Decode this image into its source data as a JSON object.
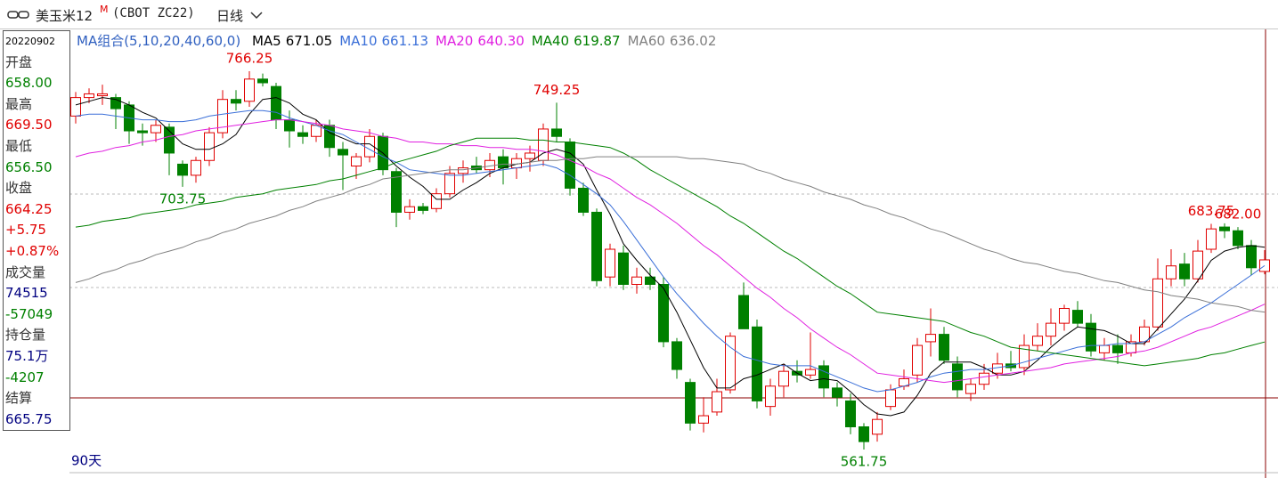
{
  "header": {
    "symbol": "美玉米12",
    "flag": "M",
    "code": "(CBOT ZC22)",
    "period": "日线"
  },
  "info": {
    "date": "20220902",
    "items": [
      {
        "text": "开盘",
        "color": "#333"
      },
      {
        "text": "658.00",
        "color": "#008000"
      },
      {
        "text": "最高",
        "color": "#333"
      },
      {
        "text": "669.50",
        "color": "#e00000"
      },
      {
        "text": "最低",
        "color": "#333"
      },
      {
        "text": "656.50",
        "color": "#008000"
      },
      {
        "text": "收盘",
        "color": "#333"
      },
      {
        "text": "664.25",
        "color": "#e00000"
      },
      {
        "text": "+5.75",
        "color": "#e00000"
      },
      {
        "text": "+0.87%",
        "color": "#e00000"
      },
      {
        "text": "成交量",
        "color": "#333"
      },
      {
        "text": "74515",
        "color": "#000080"
      },
      {
        "text": "-57049",
        "color": "#008000"
      },
      {
        "text": "持仓量",
        "color": "#333"
      },
      {
        "text": "75.1万",
        "color": "#000080"
      },
      {
        "text": "-4207",
        "color": "#008000"
      },
      {
        "text": "结算",
        "color": "#333"
      },
      {
        "text": "665.75",
        "color": "#000080"
      }
    ]
  },
  "chart_data": {
    "type": "candlestick",
    "indicator": "MA组合(5,10,20,40,60,0)",
    "indicator_color": "#3060c0",
    "period_label": "90天",
    "up_color": "#e00000",
    "down_color": "#008000",
    "ylim": [
      549.7,
      789.35
    ],
    "open": [
      742,
      752,
      753,
      752,
      748,
      734,
      733,
      736,
      716,
      710,
      718,
      733,
      751,
      750,
      762,
      758,
      740,
      733,
      731,
      737,
      724,
      715,
      720,
      731,
      712,
      690,
      693,
      692,
      700,
      711,
      715,
      713,
      720,
      714,
      719,
      718,
      735,
      728,
      703,
      690,
      655,
      668,
      651,
      655,
      651,
      620,
      598,
      576,
      582,
      594,
      645,
      628,
      585,
      596,
      604,
      602,
      607,
      595,
      588,
      574,
      570,
      585,
      596,
      602,
      620,
      624,
      608,
      592,
      597,
      603,
      608,
      606,
      618,
      623,
      630,
      637,
      630,
      614,
      618,
      614,
      620,
      628,
      654,
      662,
      654,
      670,
      682,
      680,
      672,
      658
    ],
    "high": [
      755,
      757,
      759,
      754,
      750,
      738,
      740,
      738,
      718,
      720,
      736,
      756,
      756,
      766.25,
      765,
      760,
      745,
      737,
      740,
      740,
      728,
      722,
      735,
      733,
      714,
      697,
      695,
      703,
      715,
      718,
      720,
      722,
      724,
      722,
      726,
      738,
      749.25,
      730,
      706,
      692,
      673,
      672,
      660,
      660,
      655,
      622,
      600,
      590,
      600,
      625,
      652,
      632,
      600,
      608,
      610,
      625,
      610,
      598,
      592,
      576,
      582,
      597,
      605,
      622,
      638,
      628,
      612,
      600,
      608,
      614,
      615,
      624,
      630,
      638,
      640,
      642,
      635,
      622,
      624,
      624,
      632,
      665,
      670,
      668,
      675,
      683.75,
      684,
      682,
      675,
      669.5
    ],
    "low": [
      738,
      749,
      748,
      735,
      727,
      726,
      728,
      710,
      703.75,
      706,
      715,
      730,
      745,
      747,
      758,
      735,
      725,
      727,
      728,
      720,
      702,
      708,
      717,
      710,
      682,
      686,
      689,
      690,
      698,
      706,
      711,
      709,
      705,
      708,
      712,
      715,
      728,
      699,
      688,
      650,
      650,
      648,
      646,
      648,
      617,
      600,
      572,
      571,
      580,
      592,
      628,
      584,
      580,
      590,
      598,
      600,
      590,
      585,
      570,
      561.75,
      566,
      583,
      594,
      598,
      612,
      608,
      590,
      588,
      594,
      600,
      604,
      602,
      615,
      618,
      626,
      628,
      612,
      610,
      608,
      612,
      618,
      626,
      650,
      650,
      652,
      668,
      676,
      670,
      656,
      656.5
    ],
    "close": [
      752,
      754,
      754,
      746,
      734,
      733,
      737,
      722,
      710,
      718,
      733,
      751,
      749,
      762,
      760,
      740,
      734,
      731,
      737,
      725,
      721,
      720,
      731,
      713,
      690,
      693,
      691,
      700,
      711,
      714,
      713,
      718,
      714,
      719,
      722,
      735,
      731,
      703,
      690,
      653,
      670,
      651,
      655,
      651,
      620,
      605,
      576,
      580,
      593,
      623,
      627,
      588,
      596,
      604,
      602,
      605,
      595,
      590,
      574,
      566,
      578,
      594,
      600,
      618,
      624,
      610,
      594,
      597,
      603,
      608,
      606,
      618,
      623,
      630,
      638,
      630,
      615,
      618,
      614,
      620,
      628,
      654,
      661,
      654,
      669,
      681,
      680,
      672,
      660,
      664.25
    ],
    "series": [
      {
        "name": "MA5",
        "legend_value": "671.05",
        "color": "#000000",
        "values": [
          748,
          750,
          752,
          751,
          748,
          744,
          741,
          734,
          727,
          724,
          724,
          727,
          732,
          743,
          751,
          752,
          749,
          743,
          740,
          733,
          730,
          727,
          727,
          722,
          715,
          709,
          704,
          697,
          697,
          702,
          706,
          711,
          714,
          716,
          717,
          722,
          724,
          722,
          716,
          702,
          689,
          673,
          664,
          656,
          649,
          636,
          621,
          606,
          595,
          595,
          600,
          602,
          605,
          608,
          603,
          599,
          600,
          599,
          593,
          586,
          581,
          580,
          582,
          591,
          603,
          609,
          609,
          609,
          606,
          602,
          602,
          604,
          610,
          617,
          623,
          628,
          627,
          626,
          623,
          619,
          619,
          627,
          635,
          643,
          653,
          664,
          669,
          671,
          672,
          671.05
        ]
      },
      {
        "name": "MA10",
        "legend_value": "661.13",
        "color": "#3a6fd8",
        "values": [
          742,
          743,
          743,
          742,
          741,
          740,
          740,
          739,
          739,
          740,
          742,
          743,
          744,
          745,
          745,
          744,
          741,
          739,
          737,
          734,
          732,
          728,
          724,
          720,
          717,
          713,
          712,
          711,
          710,
          710,
          711,
          712,
          713,
          714,
          715,
          716,
          714,
          710,
          705,
          700,
          694,
          685,
          675,
          665,
          655,
          646,
          638,
          630,
          623,
          617,
          612,
          610,
          608,
          607,
          607,
          607,
          604,
          601,
          598,
          595,
          593,
          594,
          596,
          598,
          601,
          603,
          604,
          605,
          605,
          606,
          607,
          609,
          611,
          613,
          615,
          617,
          618,
          618,
          619,
          619,
          620,
          624,
          628,
          633,
          637,
          641,
          646,
          651,
          656,
          661.13
        ]
      },
      {
        "name": "MA20",
        "legend_value": "640.30",
        "color": "#e020e0",
        "values": [
          720,
          722,
          723,
          725,
          726,
          728,
          729,
          731,
          732,
          734,
          735,
          736,
          737,
          738,
          739,
          740,
          740,
          739,
          738,
          737,
          735,
          734,
          733,
          731,
          730,
          728,
          728,
          727,
          727,
          726,
          726,
          725,
          725,
          724,
          724,
          723,
          721,
          718,
          715,
          711,
          708,
          703,
          698,
          694,
          689,
          684,
          678,
          672,
          667,
          661,
          655,
          649,
          644,
          638,
          633,
          627,
          622,
          617,
          613,
          608,
          603,
          602,
          601,
          600,
          599,
          598,
          599,
          600,
          601,
          602,
          603,
          604,
          605,
          606,
          608,
          609,
          610,
          611,
          612,
          614,
          615,
          617,
          620,
          623,
          626,
          628,
          631,
          634,
          637,
          640.3
        ]
      },
      {
        "name": "MA40",
        "legend_value": "619.87",
        "color": "#008000",
        "values": [
          682,
          683,
          685,
          686,
          687,
          689,
          690,
          691,
          692,
          694,
          695,
          696,
          698,
          699,
          700,
          702,
          703,
          704,
          705,
          707,
          708,
          710,
          712,
          714,
          717,
          719,
          721,
          723,
          726,
          728,
          730,
          730,
          730,
          730,
          729,
          729,
          728,
          728,
          727,
          726,
          725,
          722,
          718,
          713,
          709,
          705,
          701,
          697,
          693,
          688,
          684,
          679,
          674,
          669,
          665,
          660,
          655,
          650,
          646,
          641,
          636,
          635,
          634,
          633,
          632,
          631,
          628,
          625,
          623,
          620,
          617,
          616,
          615,
          614,
          613,
          612,
          611,
          610,
          609,
          608,
          607,
          608,
          609,
          610,
          611,
          613,
          614,
          616,
          618,
          619.87
        ]
      },
      {
        "name": "MA60",
        "legend_value": "636.02",
        "color": "#808080",
        "values": [
          652,
          654,
          657,
          659,
          662,
          664,
          667,
          669,
          671,
          674,
          676,
          679,
          681,
          684,
          686,
          688,
          691,
          693,
          696,
          698,
          700,
          703,
          705,
          708,
          709,
          710,
          711,
          712,
          713,
          713,
          714,
          715,
          716,
          716,
          717,
          718,
          718,
          719,
          719,
          720,
          720,
          720,
          720,
          720,
          720,
          720,
          719,
          719,
          718,
          717,
          716,
          713,
          711,
          708,
          706,
          704,
          701,
          699,
          697,
          694,
          692,
          689,
          687,
          684,
          681,
          679,
          676,
          673,
          670,
          668,
          665,
          663,
          662,
          660,
          658,
          657,
          655,
          653,
          652,
          650,
          648,
          647,
          645,
          644,
          643,
          641,
          640,
          639,
          637,
          636.02
        ]
      }
    ],
    "annotations": [
      {
        "value": 766.25,
        "label": "766.25"
      },
      {
        "value": 703.75,
        "label": "703.75"
      },
      {
        "value": 682,
        "label": "682.00"
      },
      {
        "value": 749.25,
        "label": "749.25"
      },
      {
        "value": 561.75,
        "label": "561.75"
      },
      {
        "value": 683.75,
        "label": "683.75"
      }
    ]
  }
}
